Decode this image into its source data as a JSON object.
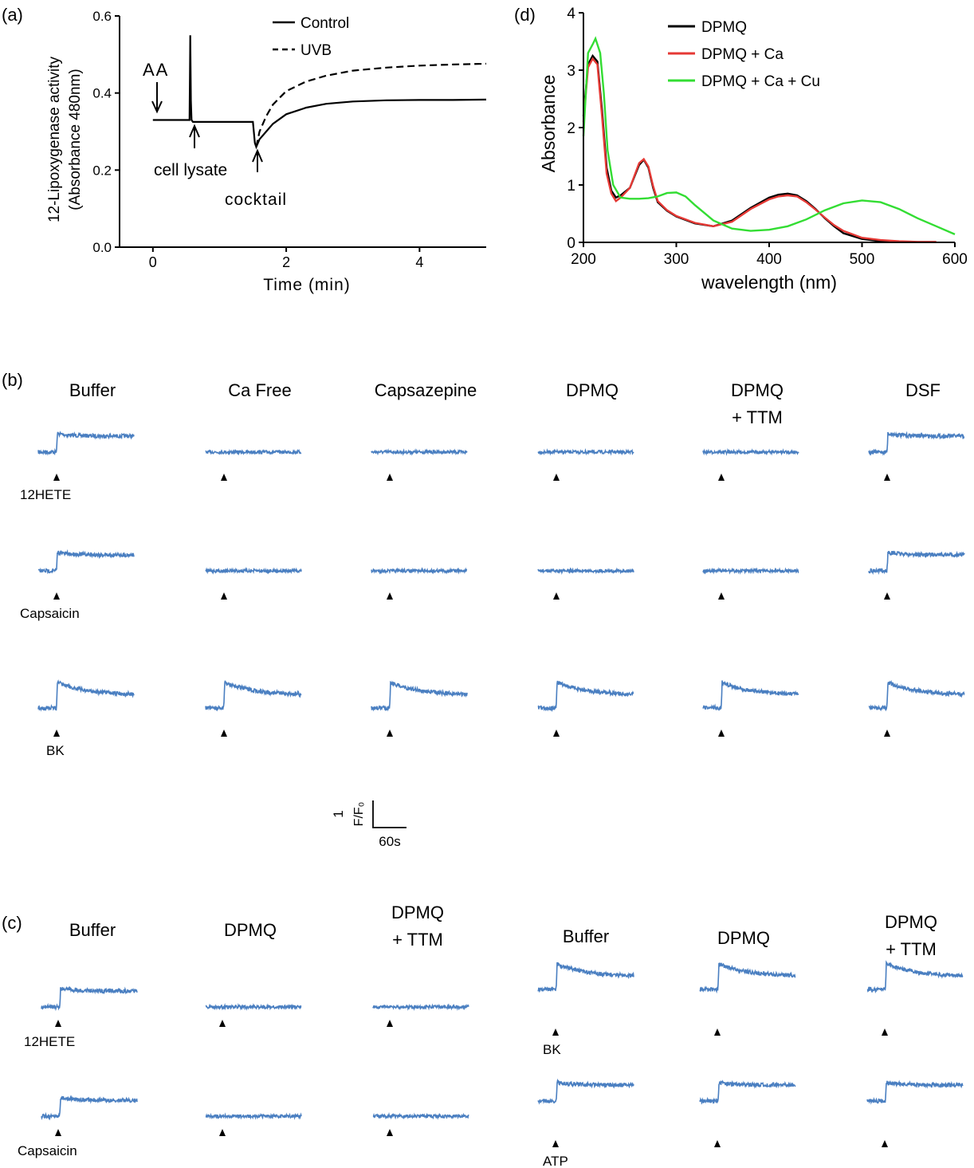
{
  "panel_labels": {
    "a": "(a)",
    "b": "(b)",
    "c": "(c)",
    "d": "(d)"
  },
  "chart_data": [
    {
      "panel": "a",
      "type": "line",
      "xlabel": "Time (min)",
      "ylabel_line1": "12-Lipoxygenase activity",
      "ylabel_line2": "(Absorbance 480nm)",
      "xlim": [
        -0.5,
        5
      ],
      "ylim": [
        0.0,
        0.6
      ],
      "xticks": [
        0,
        2,
        4
      ],
      "yticks": [
        0.0,
        0.2,
        0.4,
        0.6
      ],
      "ytick_labels": [
        "0.0",
        "0.2",
        "0.4",
        "0.6"
      ],
      "legend_position": "top-right",
      "series": [
        {
          "name": "Control",
          "style": "solid",
          "color": "#000000",
          "x": [
            0,
            0.55,
            0.56,
            0.57,
            0.58,
            0.6,
            1.0,
            1.5,
            1.53,
            1.55,
            1.6,
            1.7,
            1.8,
            2.0,
            2.3,
            2.6,
            3.0,
            3.5,
            4.0,
            4.5,
            5.0
          ],
          "y": [
            0.33,
            0.33,
            0.55,
            0.38,
            0.33,
            0.325,
            0.325,
            0.325,
            0.27,
            0.26,
            0.28,
            0.3,
            0.32,
            0.345,
            0.362,
            0.372,
            0.378,
            0.381,
            0.382,
            0.382,
            0.383
          ]
        },
        {
          "name": "UVB",
          "style": "dashed",
          "color": "#000000",
          "x": [
            1.55,
            1.6,
            1.7,
            1.8,
            2.0,
            2.3,
            2.6,
            3.0,
            3.5,
            4.0,
            4.5,
            5.0
          ],
          "y": [
            0.26,
            0.3,
            0.34,
            0.37,
            0.405,
            0.43,
            0.445,
            0.458,
            0.466,
            0.471,
            0.474,
            0.476
          ]
        }
      ],
      "annotations": [
        {
          "text": "AA",
          "x": 0.0,
          "y": 0.43
        },
        {
          "text": "cell lysate",
          "x": 0.6,
          "y": 0.2
        },
        {
          "text": "cocktail",
          "x": 1.6,
          "y": 0.12
        }
      ]
    },
    {
      "panel": "d",
      "type": "line",
      "xlabel": "wavelength (nm)",
      "ylabel": "Absorbance",
      "xlim": [
        200,
        600
      ],
      "ylim": [
        0,
        4
      ],
      "xticks": [
        200,
        300,
        400,
        500,
        600
      ],
      "yticks": [
        0,
        1,
        2,
        3,
        4
      ],
      "legend_position": "top-right",
      "series": [
        {
          "name": "DPMQ",
          "color": "#000000",
          "x": [
            200,
            205,
            210,
            215,
            220,
            225,
            230,
            235,
            240,
            250,
            260,
            265,
            270,
            275,
            280,
            290,
            300,
            320,
            340,
            360,
            380,
            400,
            410,
            420,
            430,
            440,
            450,
            460,
            470,
            480,
            500,
            520,
            540
          ],
          "y": [
            2.2,
            3.1,
            3.25,
            3.15,
            2.3,
            1.3,
            0.9,
            0.78,
            0.82,
            0.95,
            1.35,
            1.44,
            1.3,
            0.95,
            0.7,
            0.55,
            0.45,
            0.33,
            0.28,
            0.38,
            0.6,
            0.78,
            0.83,
            0.85,
            0.82,
            0.72,
            0.58,
            0.42,
            0.28,
            0.16,
            0.06,
            0.02,
            0.01
          ]
        },
        {
          "name": "DPMQ + Ca",
          "color": "#e53935",
          "x": [
            200,
            205,
            210,
            215,
            220,
            225,
            230,
            235,
            240,
            250,
            260,
            265,
            270,
            275,
            280,
            290,
            300,
            320,
            340,
            360,
            380,
            400,
            410,
            420,
            430,
            440,
            450,
            460,
            470,
            480,
            500,
            520,
            540,
            560,
            580
          ],
          "y": [
            2.1,
            3.05,
            3.2,
            3.1,
            2.2,
            1.2,
            0.85,
            0.72,
            0.78,
            0.95,
            1.38,
            1.45,
            1.32,
            0.98,
            0.72,
            0.56,
            0.46,
            0.34,
            0.28,
            0.36,
            0.58,
            0.75,
            0.8,
            0.82,
            0.8,
            0.7,
            0.57,
            0.43,
            0.3,
            0.2,
            0.08,
            0.04,
            0.02,
            0.01,
            0.01
          ]
        },
        {
          "name": "DPMQ + Ca + Cu",
          "color": "#33dd33",
          "x": [
            200,
            205,
            210,
            213,
            218,
            222,
            226,
            232,
            240,
            250,
            260,
            270,
            280,
            290,
            300,
            310,
            320,
            340,
            360,
            380,
            400,
            420,
            440,
            460,
            480,
            500,
            520,
            540,
            560,
            580,
            600
          ],
          "y": [
            1.85,
            3.3,
            3.45,
            3.55,
            3.3,
            2.6,
            1.6,
            1.0,
            0.78,
            0.76,
            0.76,
            0.77,
            0.8,
            0.86,
            0.87,
            0.8,
            0.65,
            0.38,
            0.24,
            0.2,
            0.22,
            0.28,
            0.4,
            0.56,
            0.68,
            0.73,
            0.7,
            0.58,
            0.42,
            0.28,
            0.14
          ]
        }
      ]
    }
  ],
  "panel_b": {
    "columns": [
      "Buffer",
      "Ca Free",
      "Capsazepine",
      "DPMQ",
      "DPMQ\n+ TTM",
      "DSF"
    ],
    "row_stimuli": [
      "12HETE",
      "Capsaicin",
      "BK"
    ],
    "responses": [
      [
        1,
        0,
        0,
        0,
        0,
        1
      ],
      [
        1,
        0,
        0,
        0,
        0,
        1
      ],
      [
        1,
        1,
        1,
        1,
        1,
        1
      ]
    ]
  },
  "scale_bar": {
    "vertical": "1",
    "vertical_unit": "F/F₀",
    "horizontal": "60s"
  },
  "panel_c_left": {
    "columns": [
      "Buffer",
      "DPMQ",
      "DPMQ\n+ TTM"
    ],
    "row_stimuli": [
      "12HETE",
      "Capsaicin"
    ],
    "responses": [
      [
        1,
        0,
        0
      ],
      [
        1,
        0,
        0
      ]
    ]
  },
  "panel_c_right": {
    "columns": [
      "Buffer",
      "DPMQ",
      "DPMQ\n+ TTM"
    ],
    "row_stimuli": [
      "BK",
      "ATP"
    ],
    "responses": [
      [
        1,
        1,
        1
      ],
      [
        1,
        1,
        1
      ]
    ]
  },
  "colors": {
    "trace": "#4a7fc1",
    "axis": "#000000"
  }
}
